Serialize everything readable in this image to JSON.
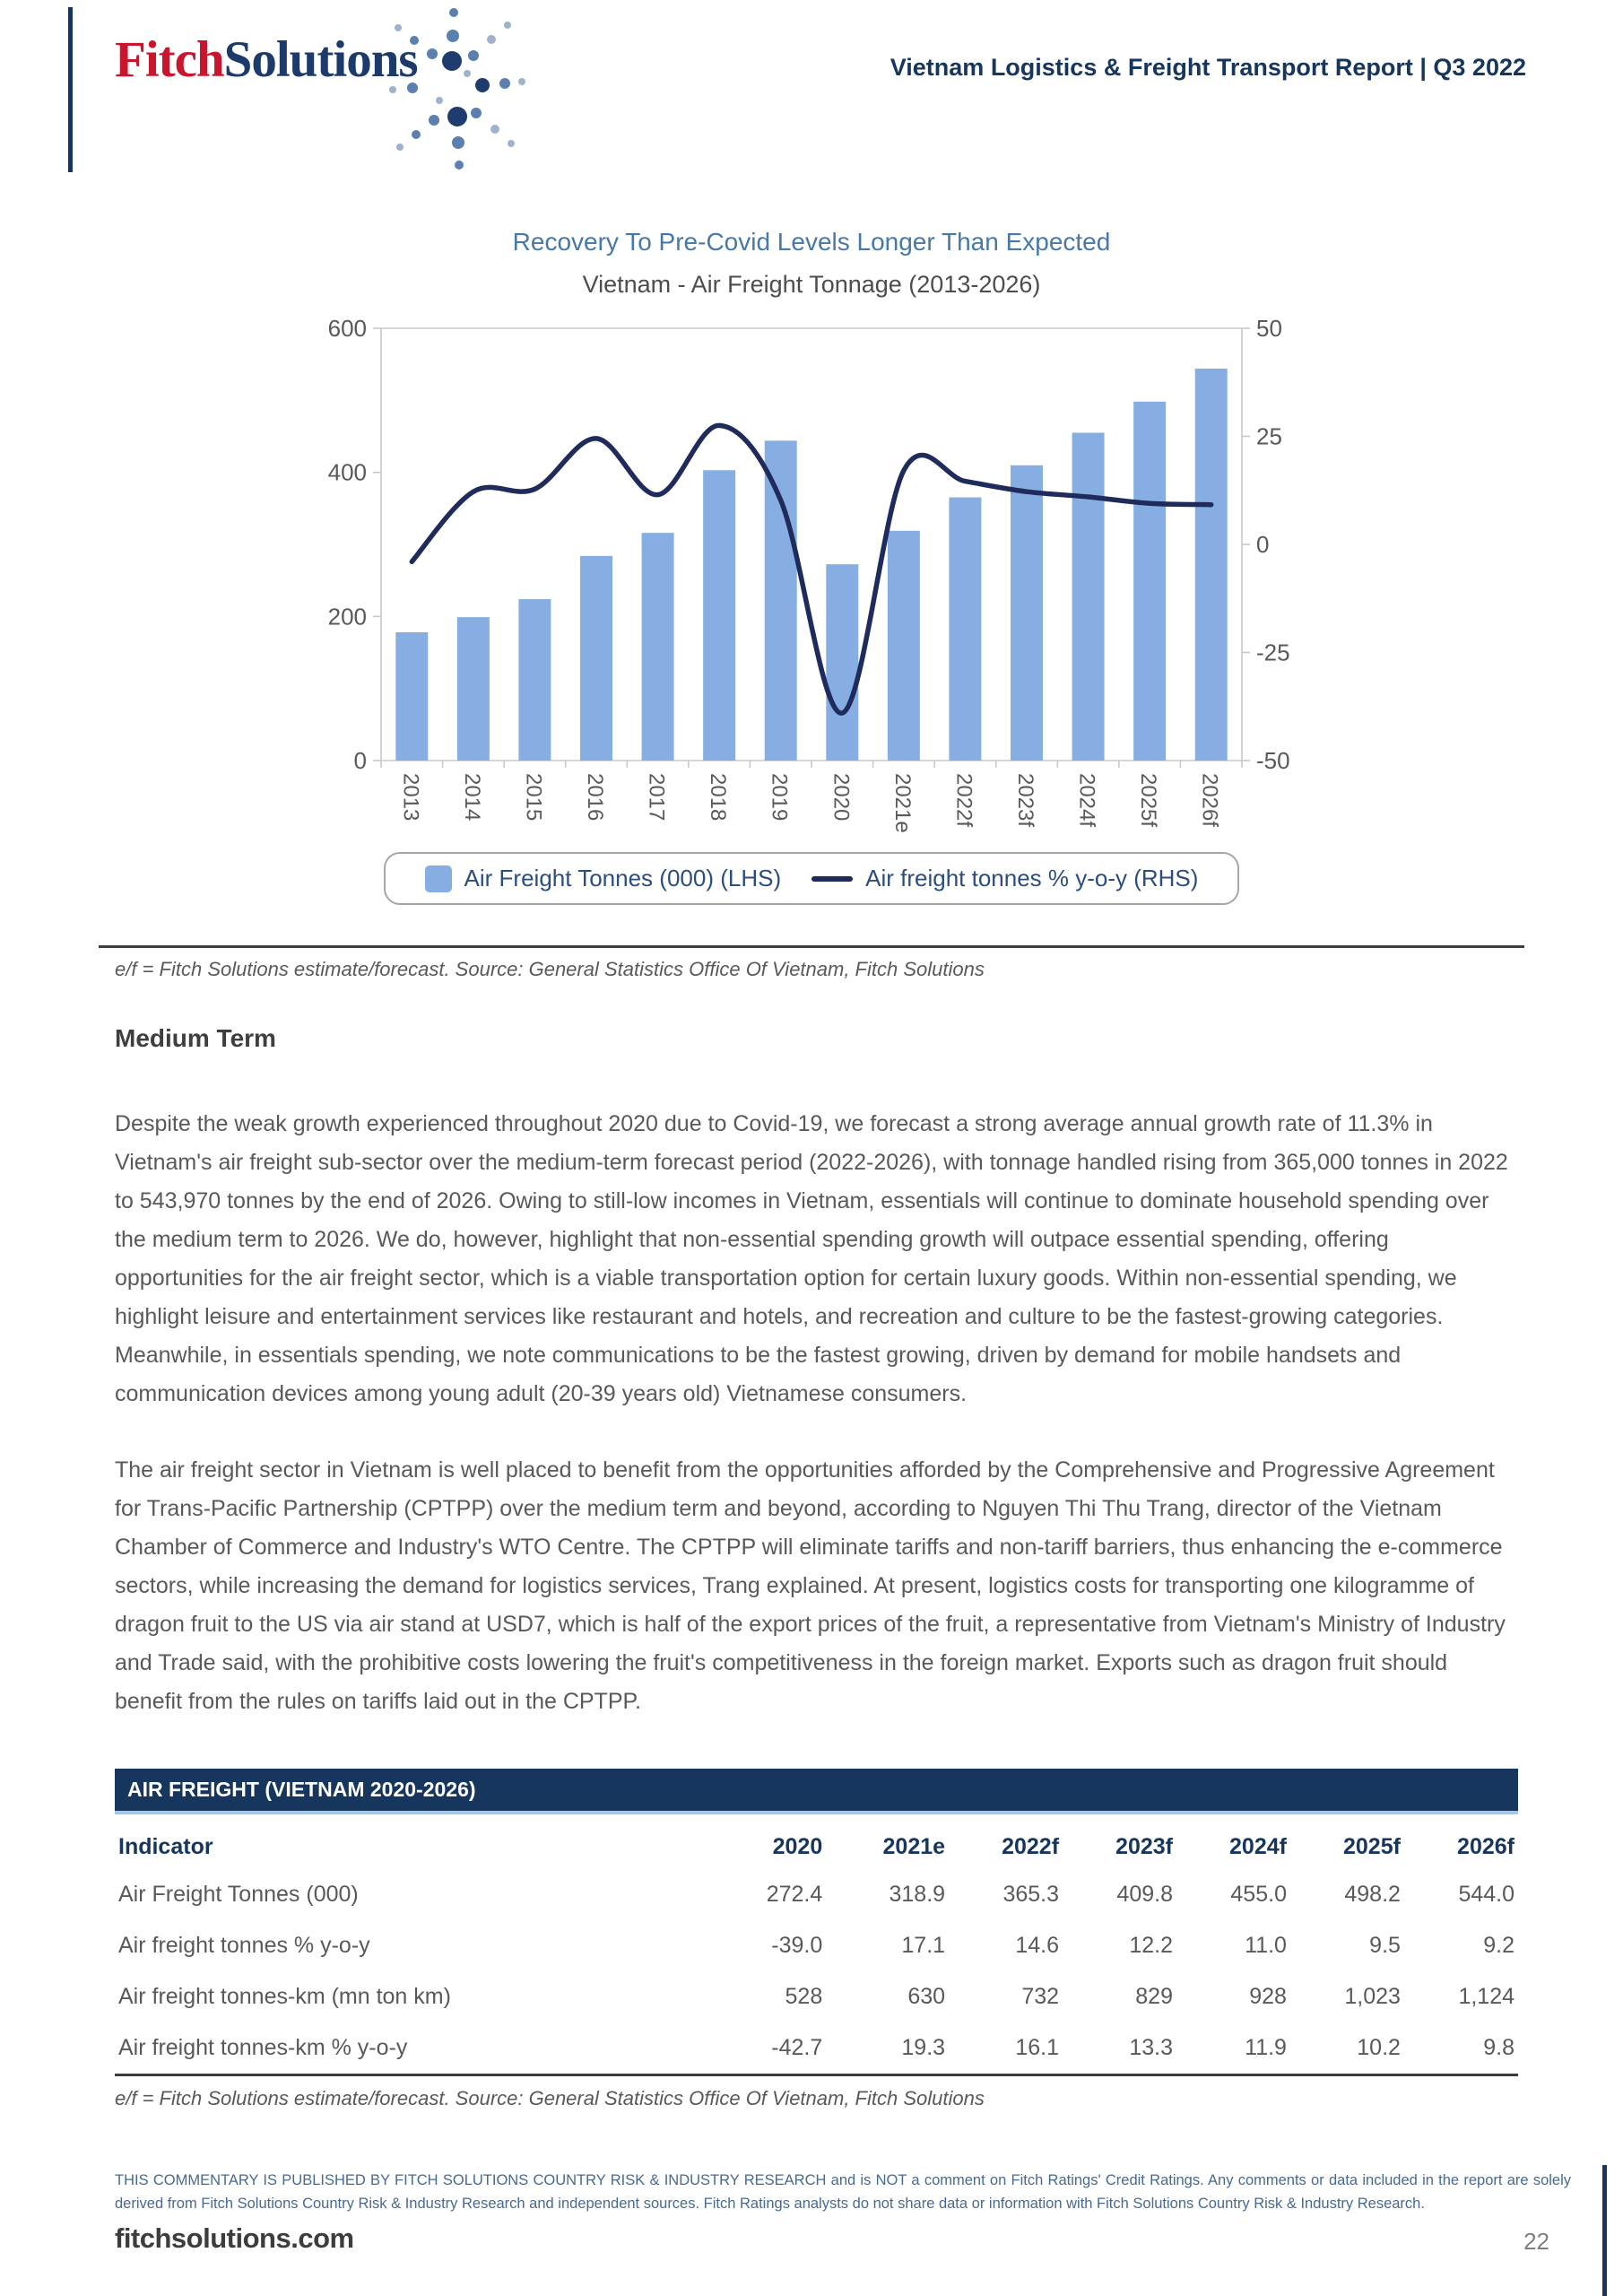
{
  "header": {
    "logo_fitch": "Fitch",
    "logo_solutions": "Solutions",
    "report_title": "Vietnam Logistics & Freight Transport Report | Q3 2022"
  },
  "chart": {
    "title": "Recovery To Pre-Covid Levels Longer Than Expected",
    "subtitle": "Vietnam - Air Freight Tonnage (2013-2026)",
    "legend": [
      {
        "label": "Air Freight Tonnes (000) (LHS)",
        "marker": "square"
      },
      {
        "label": "Air freight tonnes % y-o-y (RHS)",
        "marker": "line"
      }
    ],
    "source_note": "e/f = Fitch Solutions estimate/forecast. Source: General Statistics Office Of Vietnam, Fitch Solutions"
  },
  "chart_data": {
    "type": "bar",
    "subtype": "dual-axis bar + smooth line",
    "categories": [
      "2013",
      "2014",
      "2015",
      "2016",
      "2017",
      "2018",
      "2019",
      "2020",
      "2021e",
      "2022f",
      "2023f",
      "2024f",
      "2025f",
      "2026f"
    ],
    "series": [
      {
        "name": "Air Freight Tonnes (000) (LHS)",
        "type": "bar",
        "axis": "left",
        "values": [
          178,
          199,
          224,
          284,
          316,
          403,
          444,
          272.4,
          318.9,
          365.3,
          409.8,
          455.0,
          498.2,
          544.0
        ]
      },
      {
        "name": "Air freight tonnes % y-o-y (RHS)",
        "type": "line",
        "axis": "right",
        "values": [
          -4,
          12.2,
          12.8,
          24.5,
          11.5,
          27.5,
          10.2,
          -39.0,
          17.1,
          14.6,
          12.2,
          11.0,
          9.5,
          9.2
        ]
      }
    ],
    "left_axis": {
      "range": [
        0,
        600
      ],
      "ticks": [
        0,
        200,
        400,
        600
      ]
    },
    "right_axis": {
      "range": [
        -50,
        50
      ],
      "ticks": [
        -50,
        -25,
        0,
        25,
        50
      ]
    },
    "grid": "off",
    "legend_position": "bottom",
    "colors": {
      "bar": "#86aee3",
      "line": "#1f2b5b",
      "axis": "#c8c8c8",
      "tick_text": "#595959"
    }
  },
  "body": {
    "section_heading": "Medium Term",
    "paragraphs": [
      "Despite the weak growth experienced throughout 2020 due to Covid-19, we forecast a strong average annual growth rate of 11.3% in Vietnam's air freight sub-sector over the medium-term forecast period (2022-2026), with tonnage handled rising from 365,000 tonnes in 2022 to 543,970 tonnes by the end of 2026. Owing to still-low incomes in Vietnam, essentials will continue to dominate household spending over the medium term to 2026. We do, however, highlight that non-essential spending growth will outpace essential spending, offering opportunities for the air freight sector, which is a viable transportation option for certain luxury goods. Within non-essential spending, we highlight leisure and entertainment services like restaurant and hotels, and recreation and culture to be the fastest-growing categories. Meanwhile, in essentials spending, we note communications to be the fastest growing, driven by demand for mobile handsets and communication devices among young adult (20-39 years old) Vietnamese consumers.",
      "The air freight sector in Vietnam is well placed to benefit from the opportunities afforded by the Comprehensive and Progressive Agreement for Trans-Pacific Partnership (CPTPP) over the medium term and beyond, according to Nguyen Thi Thu Trang, director of the Vietnam Chamber of Commerce and Industry's WTO Centre. The CPTPP will eliminate tariffs and non-tariff barriers, thus enhancing the e-commerce sectors, while increasing the demand for logistics services, Trang explained. At present, logistics costs for transporting one kilogramme of dragon fruit to the US via air stand at USD7, which is half of the export prices of the fruit, a representative from Vietnam's Ministry of Industry and Trade said, with the prohibitive costs lowering the fruit's competitiveness in the foreign market. Exports such as dragon fruit should benefit from the rules on tariffs laid out in the CPTPP."
    ]
  },
  "table": {
    "title": "AIR FREIGHT (VIETNAM 2020-2026)",
    "columns": [
      "Indicator",
      "2020",
      "2021e",
      "2022f",
      "2023f",
      "2024f",
      "2025f",
      "2026f"
    ],
    "rows": [
      [
        "Air Freight Tonnes (000)",
        "272.4",
        "318.9",
        "365.3",
        "409.8",
        "455.0",
        "498.2",
        "544.0"
      ],
      [
        "Air freight tonnes % y-o-y",
        "-39.0",
        "17.1",
        "14.6",
        "12.2",
        "11.0",
        "9.5",
        "9.2"
      ],
      [
        "Air freight tonnes-km (mn ton km)",
        "528",
        "630",
        "732",
        "829",
        "928",
        "1,023",
        "1,124"
      ],
      [
        "Air freight tonnes-km % y-o-y",
        "-42.7",
        "19.3",
        "16.1",
        "13.3",
        "11.9",
        "10.2",
        "9.8"
      ]
    ],
    "source_note": "e/f = Fitch Solutions estimate/forecast. Source: General Statistics Office Of Vietnam, Fitch Solutions"
  },
  "footer": {
    "disclaimer": "THIS COMMENTARY IS PUBLISHED BY FITCH SOLUTIONS COUNTRY RISK & INDUSTRY RESEARCH and is NOT a comment on Fitch Ratings' Credit Ratings. Any comments or data included in the report are solely derived from Fitch Solutions Country Risk & Industry Research and independent sources. Fitch Ratings analysts do not share data or information with Fitch Solutions Country Risk & Industry Research.",
    "site": "fitchsolutions.com",
    "page_number": "22"
  },
  "colors": {
    "brand_red": "#c9162f",
    "brand_navy": "#17365d",
    "chart_title_blue": "#4679a9"
  }
}
